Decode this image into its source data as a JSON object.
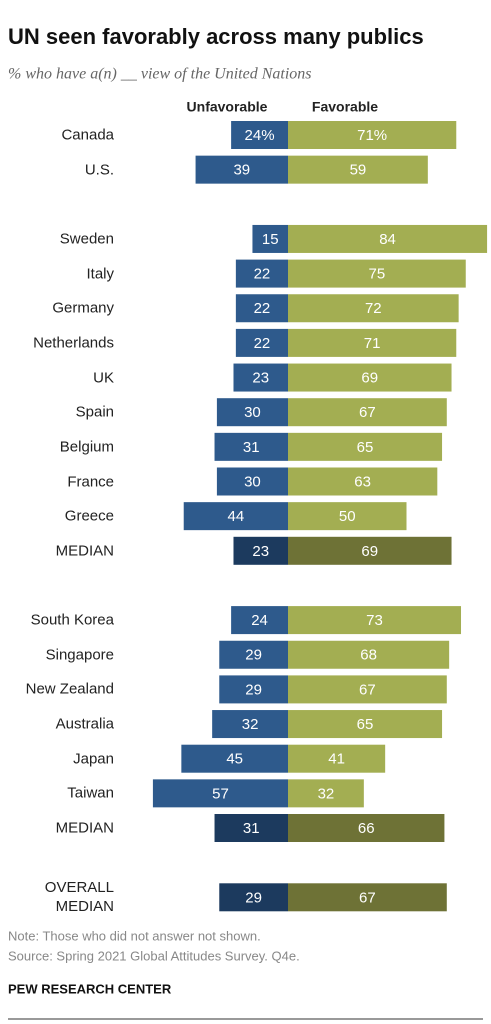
{
  "chart_data": {
    "type": "diverging-bar",
    "title": "UN seen favorably across many publics",
    "subtitle": "% who have a(n) __ view of the United Nations",
    "categories": [
      "Canada",
      "U.S.",
      null,
      "Sweden",
      "Italy",
      "Germany",
      "Netherlands",
      "UK",
      "Spain",
      "Belgium",
      "France",
      "Greece",
      "MEDIAN",
      null,
      "South Korea",
      "Singapore",
      "New Zealand",
      "Australia",
      "Japan",
      "Taiwan",
      "MEDIAN",
      null,
      "OVERALL MEDIAN"
    ],
    "series": [
      {
        "name": "Unfavorable",
        "side": "left",
        "values": [
          24,
          39,
          null,
          15,
          22,
          22,
          22,
          23,
          30,
          31,
          30,
          44,
          23,
          null,
          24,
          29,
          29,
          32,
          45,
          57,
          31,
          null,
          29
        ],
        "value_labels": [
          "24%",
          "39",
          null,
          "15",
          "22",
          "22",
          "22",
          "23",
          "30",
          "31",
          "30",
          "44",
          "23",
          null,
          "24",
          "29",
          "29",
          "32",
          "45",
          "57",
          "31",
          null,
          "29"
        ],
        "colors": [
          "#2e5a8c",
          "#2e5a8c",
          null,
          "#2e5a8c",
          "#2e5a8c",
          "#2e5a8c",
          "#2e5a8c",
          "#2e5a8c",
          "#2e5a8c",
          "#2e5a8c",
          "#2e5a8c",
          "#2e5a8c",
          "#1c3a5e",
          null,
          "#2e5a8c",
          "#2e5a8c",
          "#2e5a8c",
          "#2e5a8c",
          "#2e5a8c",
          "#2e5a8c",
          "#1c3a5e",
          null,
          "#1c3a5e"
        ]
      },
      {
        "name": "Favorable",
        "side": "right",
        "values": [
          71,
          59,
          null,
          84,
          75,
          72,
          71,
          69,
          67,
          65,
          63,
          50,
          69,
          null,
          73,
          68,
          67,
          65,
          41,
          32,
          66,
          null,
          67
        ],
        "value_labels": [
          "71%",
          "59",
          null,
          "84",
          "75",
          "72",
          "71",
          "69",
          "67",
          "65",
          "63",
          "50",
          "69",
          null,
          "73",
          "68",
          "67",
          "65",
          "41",
          "32",
          "66",
          null,
          "67"
        ],
        "colors": [
          "#a3ae52",
          "#a3ae52",
          null,
          "#a3ae52",
          "#a3ae52",
          "#a3ae52",
          "#a3ae52",
          "#a3ae52",
          "#a3ae52",
          "#a3ae52",
          "#a3ae52",
          "#a3ae52",
          "#6e7236",
          null,
          "#a3ae52",
          "#a3ae52",
          "#a3ae52",
          "#a3ae52",
          "#a3ae52",
          "#a3ae52",
          "#6e7236",
          null,
          "#6e7236"
        ]
      }
    ],
    "note": "Note: Those who did not answer not shown.",
    "source": "Source: Spring 2021 Global Attitudes Survey. Q4e.",
    "credit": "PEW RESEARCH CENTER"
  }
}
